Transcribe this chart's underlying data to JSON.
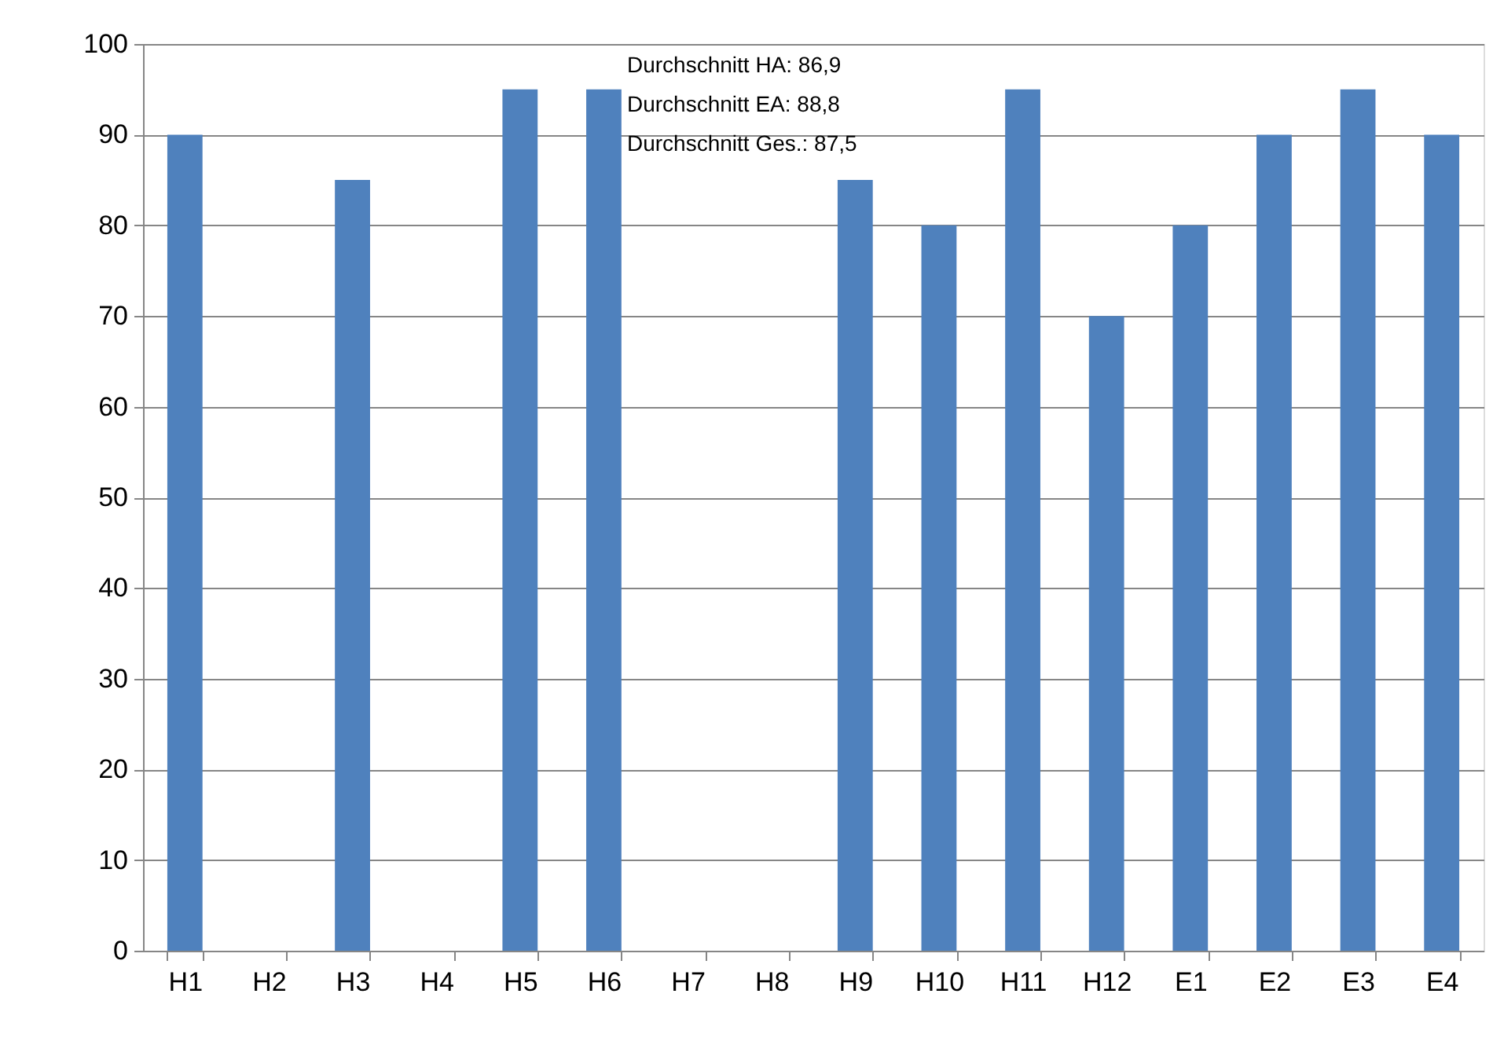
{
  "chart_data": {
    "type": "bar",
    "categories": [
      "H1",
      "H2",
      "H3",
      "H4",
      "H5",
      "H6",
      "H7",
      "H8",
      "H9",
      "H10",
      "H11",
      "H12",
      "E1",
      "E2",
      "E3",
      "E4"
    ],
    "values": [
      90,
      null,
      85,
      null,
      95,
      95,
      null,
      null,
      85,
      80,
      95,
      70,
      80,
      90,
      95,
      90
    ],
    "color": "#4f81bd",
    "ylim": [
      0,
      100
    ],
    "yticks": [
      0,
      10,
      20,
      30,
      40,
      50,
      60,
      70,
      80,
      90,
      100
    ],
    "grid": "y",
    "legend": false,
    "annotations": [
      "Durchschnitt HA: 86,9",
      "Durchschnitt EA: 88,8",
      "Durchschnitt Ges.: 87,5"
    ]
  }
}
